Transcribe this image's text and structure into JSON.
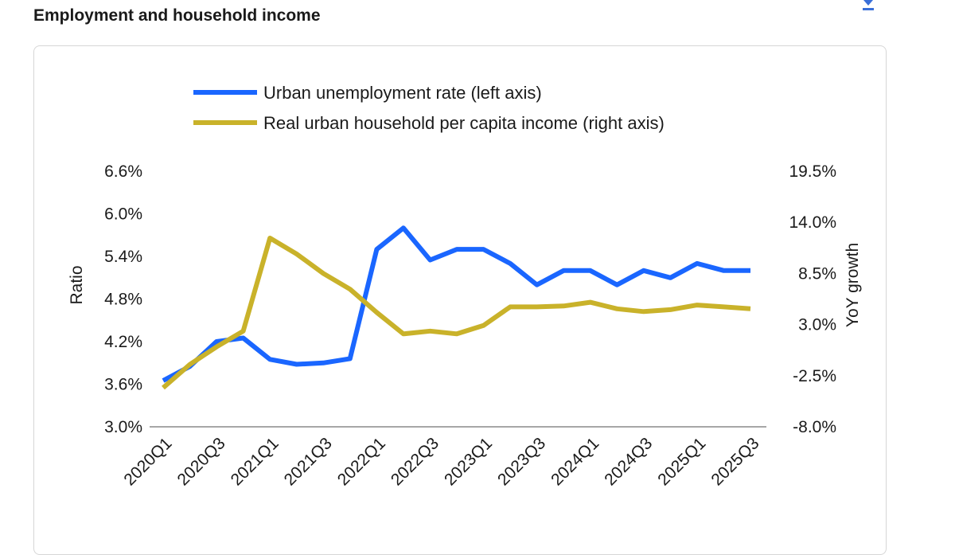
{
  "header": {
    "title": "Employment and household income",
    "download_icon": "download-icon"
  },
  "chart_data": {
    "type": "line",
    "title": "",
    "x": [
      "2020Q1",
      "2020Q2",
      "2020Q3",
      "2020Q4",
      "2021Q1",
      "2021Q2",
      "2021Q3",
      "2021Q4",
      "2022Q1",
      "2022Q2",
      "2022Q3",
      "2022Q4",
      "2023Q1",
      "2023Q2",
      "2023Q3",
      "2023Q4",
      "2024Q1",
      "2024Q2",
      "2024Q3",
      "2024Q4",
      "2025Q1",
      "2025Q2",
      "2025Q3"
    ],
    "x_tick_labels": [
      "2020Q1",
      "2020Q3",
      "2021Q1",
      "2021Q3",
      "2022Q1",
      "2022Q3",
      "2023Q1",
      "2023Q3",
      "2024Q1",
      "2024Q3",
      "2025Q1",
      "2025Q3"
    ],
    "series": [
      {
        "name": "Urban unemployment rate (left axis)",
        "axis": "left",
        "color": "#1a66ff",
        "values": [
          3.65,
          3.85,
          4.2,
          4.25,
          3.95,
          3.88,
          3.9,
          3.96,
          5.5,
          5.8,
          5.35,
          5.5,
          5.5,
          5.3,
          5.0,
          5.2,
          5.2,
          5.0,
          5.2,
          5.1,
          5.3,
          5.2,
          5.2
        ]
      },
      {
        "name": "Real urban household per capita income (right axis)",
        "axis": "right",
        "color": "#c9b22a",
        "values": [
          -3.8,
          -1.3,
          0.6,
          2.3,
          12.3,
          10.6,
          8.5,
          6.8,
          4.3,
          2.0,
          2.3,
          2.0,
          2.9,
          4.9,
          4.9,
          5.0,
          5.4,
          4.7,
          4.4,
          4.6,
          5.1,
          4.9,
          4.7
        ]
      }
    ],
    "ylabel": "Ratio",
    "ylabel_right": "YoY growth",
    "y_ticks": [
      "3.0%",
      "3.6%",
      "4.2%",
      "4.8%",
      "5.4%",
      "6.0%",
      "6.6%"
    ],
    "y_ticks_right": [
      "-8.0%",
      "-2.5%",
      "3.0%",
      "8.5%",
      "14.0%",
      "19.5%"
    ],
    "ylim": [
      3.0,
      6.6
    ],
    "ylim_right": [
      -8.0,
      19.5
    ],
    "grid": false,
    "legend_position": "top"
  }
}
